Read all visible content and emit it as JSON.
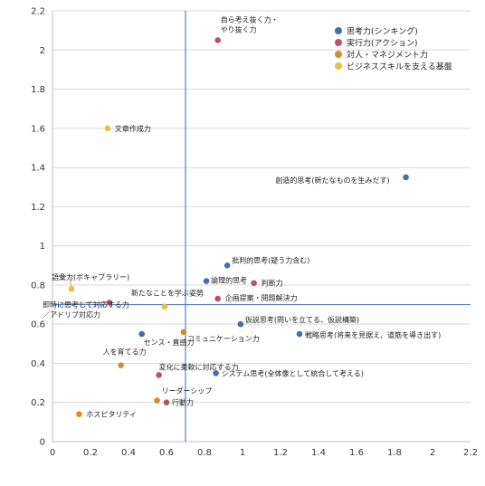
{
  "chart_data": {
    "type": "scatter",
    "title": "",
    "xlabel": "",
    "ylabel": "",
    "xlim": [
      0,
      2.2
    ],
    "ylim": [
      0,
      2.2
    ],
    "x_ticks": [
      "0",
      "0.2",
      "0.4",
      "0.6",
      "0.8",
      "1",
      "1.2",
      "1.4",
      "1.6",
      "1.8",
      "2",
      "2.2"
    ],
    "y_ticks": [
      "0",
      "0.2",
      "0.4",
      "0.6",
      "0.8",
      "1",
      "1.2",
      "1.4",
      "1.6",
      "1.8",
      "2",
      "2.2"
    ],
    "grid": "horizontal",
    "legend_position": "top-right",
    "reference_lines": {
      "x": 0.7,
      "y": 0.7,
      "color": "#5b7fc4"
    },
    "series": [
      {
        "name": "思考力(シンキング)",
        "color": "#4a6da7",
        "points": [
          {
            "label": "創造的思考(新たなものを生みだす)",
            "x": 1.86,
            "y": 1.35
          },
          {
            "label": "批判的思考(疑う力含む)",
            "x": 0.92,
            "y": 0.9
          },
          {
            "label": "論理的思考",
            "x": 0.81,
            "y": 0.82
          },
          {
            "label": "仮説思考(問いを立てる、仮説構築)",
            "x": 0.99,
            "y": 0.6
          },
          {
            "label": "戦略思考(将来を見据え、道筋を導き出す)",
            "x": 1.3,
            "y": 0.55
          },
          {
            "label": "センス・直感力",
            "x": 0.47,
            "y": 0.55
          },
          {
            "label": "システム思考(全体像として統合して考える)",
            "x": 0.86,
            "y": 0.35
          }
        ]
      },
      {
        "name": "実行力(アクション)",
        "color": "#b5536c",
        "points": [
          {
            "label": "自ら考え抜く力・\nやり抜く力",
            "x": 0.87,
            "y": 2.05
          },
          {
            "label": "判断力",
            "x": 1.06,
            "y": 0.81
          },
          {
            "label": "企画提案・問題解決力",
            "x": 0.87,
            "y": 0.73
          },
          {
            "label": "即時に思考して対応する力\n／アドリブ対応力",
            "x": 0.3,
            "y": 0.71
          },
          {
            "label": "変化に柔軟に対応する力",
            "x": 0.56,
            "y": 0.34
          },
          {
            "label": "行動力",
            "x": 0.6,
            "y": 0.2
          }
        ]
      },
      {
        "name": "対人・マネジメント力",
        "color": "#d98b2b",
        "points": [
          {
            "label": "コミュニケーション力",
            "x": 0.69,
            "y": 0.56
          },
          {
            "label": "人を育てる力",
            "x": 0.36,
            "y": 0.39
          },
          {
            "label": "リーダーシップ",
            "x": 0.55,
            "y": 0.21
          },
          {
            "label": "ホスピタリティ",
            "x": 0.14,
            "y": 0.14
          }
        ]
      },
      {
        "name": "ビジネススキルを支える基盤",
        "color": "#e8c23c",
        "points": [
          {
            "label": "文章作成力",
            "x": 0.29,
            "y": 1.6
          },
          {
            "label": "語彙力(ボキャブラリー)",
            "x": 0.1,
            "y": 0.78
          },
          {
            "label": "新たなことを学ぶ姿勢",
            "x": 0.59,
            "y": 0.69
          }
        ]
      }
    ]
  }
}
